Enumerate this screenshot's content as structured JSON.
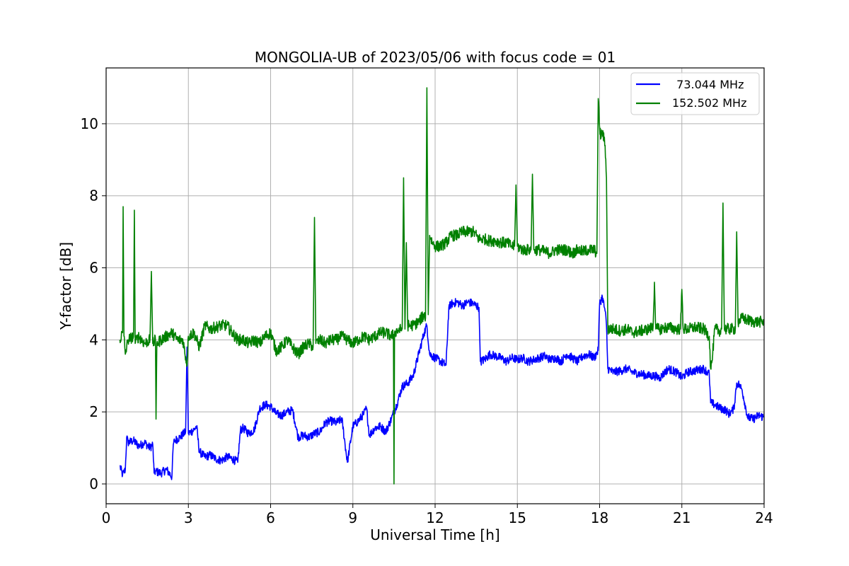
{
  "chart_data": {
    "type": "line",
    "title": "MONGOLIA-UB of 2023/05/06 with focus code = 01",
    "xlabel": "Universal Time [h]",
    "ylabel": "Y-factor [dB]",
    "xlim": [
      0,
      24
    ],
    "ylim": [
      -0.55,
      11.55
    ],
    "xticks": [
      0,
      3,
      6,
      9,
      12,
      15,
      18,
      21,
      24
    ],
    "yticks": [
      0,
      2,
      4,
      6,
      8,
      10
    ],
    "grid": true,
    "legend_position": "top-right",
    "series": [
      {
        "name": "73.044 MHz",
        "legend_label": "  73.044 MHz",
        "color": "#0000ff",
        "x": [
          0.5,
          0.6,
          0.7,
          0.75,
          0.8,
          1.0,
          1.2,
          1.4,
          1.6,
          1.7,
          1.75,
          1.8,
          2.0,
          2.2,
          2.4,
          2.45,
          2.5,
          2.7,
          2.9,
          2.95,
          3.0,
          3.2,
          3.3,
          3.4,
          3.6,
          3.8,
          4.0,
          4.2,
          4.4,
          4.6,
          4.8,
          4.9,
          5.0,
          5.2,
          5.4,
          5.6,
          5.8,
          6.0,
          6.2,
          6.4,
          6.6,
          6.8,
          6.95,
          7.0,
          7.2,
          7.4,
          7.6,
          7.8,
          8.0,
          8.2,
          8.4,
          8.6,
          8.8,
          9.0,
          9.2,
          9.4,
          9.5,
          9.6,
          9.8,
          10.0,
          10.2,
          10.4,
          10.6,
          10.8,
          11.0,
          11.2,
          11.4,
          11.6,
          11.7,
          11.8,
          12.0,
          12.2,
          12.4,
          12.5,
          12.6,
          12.8,
          13.0,
          13.2,
          13.4,
          13.6,
          13.65,
          13.8,
          14.0,
          14.2,
          14.4,
          14.6,
          14.8,
          15.0,
          15.2,
          15.4,
          15.6,
          15.8,
          16.0,
          16.2,
          16.4,
          16.6,
          16.8,
          17.0,
          17.2,
          17.4,
          17.6,
          17.8,
          17.95,
          18.0,
          18.1,
          18.2,
          18.25,
          18.3,
          18.5,
          18.8,
          19.0,
          19.2,
          19.5,
          19.8,
          20.0,
          20.2,
          20.5,
          20.8,
          21.0,
          21.2,
          21.5,
          21.8,
          22.0,
          22.05,
          22.2,
          22.4,
          22.6,
          22.7,
          22.8,
          22.9,
          23.0,
          23.1,
          23.2,
          23.4,
          23.6,
          23.8,
          24.0
        ],
        "y": [
          0.5,
          0.25,
          0.4,
          1.3,
          1.15,
          1.2,
          1.05,
          1.15,
          1.0,
          1.1,
          0.3,
          0.35,
          0.3,
          0.4,
          0.2,
          1.1,
          1.2,
          1.3,
          1.45,
          3.8,
          1.4,
          1.5,
          1.6,
          0.9,
          0.75,
          0.8,
          0.7,
          0.65,
          0.75,
          0.7,
          0.6,
          1.5,
          1.55,
          1.4,
          1.5,
          2.1,
          2.2,
          2.15,
          1.95,
          1.9,
          2.0,
          2.05,
          1.5,
          1.3,
          1.35,
          1.3,
          1.4,
          1.45,
          1.7,
          1.75,
          1.7,
          1.8,
          0.6,
          1.6,
          1.75,
          1.95,
          2.1,
          1.35,
          1.55,
          1.6,
          1.45,
          1.8,
          2.2,
          2.7,
          2.8,
          3.0,
          3.6,
          4.2,
          4.4,
          3.6,
          3.5,
          3.4,
          3.3,
          4.9,
          5.0,
          5.05,
          4.95,
          5.05,
          5.0,
          4.9,
          3.4,
          3.45,
          3.6,
          3.55,
          3.5,
          3.4,
          3.5,
          3.45,
          3.5,
          3.4,
          3.45,
          3.5,
          3.55,
          3.45,
          3.5,
          3.4,
          3.6,
          3.5,
          3.4,
          3.55,
          3.6,
          3.5,
          3.7,
          5.0,
          5.2,
          4.8,
          4.4,
          3.2,
          3.1,
          3.15,
          3.2,
          3.1,
          3.05,
          3.0,
          3.0,
          2.95,
          3.2,
          3.1,
          2.95,
          3.1,
          3.15,
          3.2,
          3.05,
          2.25,
          2.2,
          2.1,
          2.05,
          1.95,
          2.0,
          2.1,
          2.8,
          2.75,
          2.6,
          1.85,
          1.8,
          1.9,
          1.85
        ]
      },
      {
        "name": "152.502 MHz",
        "legend_label": "152.502 MHz",
        "color": "#008000",
        "x": [
          0.5,
          0.6,
          0.62,
          0.65,
          0.68,
          0.7,
          0.8,
          1.0,
          1.03,
          1.06,
          1.1,
          1.2,
          1.4,
          1.6,
          1.65,
          1.7,
          1.8,
          1.82,
          1.85,
          2.0,
          2.2,
          2.4,
          2.6,
          2.8,
          2.95,
          3.0,
          3.2,
          3.4,
          3.6,
          3.8,
          4.0,
          4.2,
          4.4,
          4.6,
          4.8,
          5.0,
          5.2,
          5.4,
          5.6,
          5.8,
          6.0,
          6.2,
          6.4,
          6.6,
          6.8,
          7.0,
          7.2,
          7.4,
          7.55,
          7.6,
          7.65,
          7.8,
          8.0,
          8.2,
          8.4,
          8.6,
          8.8,
          9.0,
          9.2,
          9.4,
          9.6,
          9.8,
          10.0,
          10.2,
          10.4,
          10.48,
          10.5,
          10.52,
          10.6,
          10.8,
          10.85,
          10.9,
          10.95,
          11.0,
          11.2,
          11.4,
          11.6,
          11.65,
          11.7,
          11.75,
          11.8,
          11.9,
          12.0,
          12.2,
          12.4,
          12.6,
          12.8,
          13.0,
          13.2,
          13.4,
          13.6,
          13.8,
          14.0,
          14.2,
          14.4,
          14.6,
          14.8,
          14.9,
          14.95,
          15.0,
          15.2,
          15.4,
          15.5,
          15.55,
          15.6,
          15.8,
          16.0,
          16.2,
          16.4,
          16.6,
          16.8,
          17.0,
          17.2,
          17.4,
          17.6,
          17.8,
          17.9,
          17.95,
          18.0,
          18.05,
          18.1,
          18.2,
          18.25,
          18.3,
          18.5,
          18.8,
          19.0,
          19.2,
          19.5,
          19.8,
          19.95,
          20.0,
          20.05,
          20.2,
          20.5,
          20.8,
          20.95,
          21.0,
          21.05,
          21.2,
          21.5,
          21.8,
          22.0,
          22.05,
          22.1,
          22.2,
          22.4,
          22.45,
          22.5,
          22.55,
          22.8,
          22.95,
          23.0,
          23.05,
          23.2,
          23.4,
          23.6,
          23.8,
          24.0
        ],
        "y": [
          4.0,
          4.2,
          7.7,
          4.1,
          3.8,
          3.6,
          4.0,
          4.1,
          7.6,
          3.9,
          4.0,
          4.1,
          3.9,
          4.0,
          5.9,
          3.9,
          4.0,
          1.8,
          3.9,
          4.0,
          4.1,
          4.2,
          4.0,
          4.0,
          3.3,
          4.1,
          4.2,
          3.8,
          4.4,
          4.3,
          4.35,
          4.4,
          4.4,
          4.2,
          4.0,
          4.0,
          3.9,
          4.0,
          3.9,
          4.1,
          4.2,
          3.7,
          3.8,
          4.0,
          3.8,
          3.6,
          3.8,
          3.9,
          3.8,
          7.4,
          3.9,
          4.0,
          3.9,
          4.0,
          4.0,
          4.1,
          4.0,
          3.9,
          4.0,
          4.1,
          4.0,
          4.1,
          4.2,
          4.2,
          4.1,
          4.15,
          0.0,
          4.2,
          4.25,
          4.3,
          8.5,
          4.3,
          6.7,
          4.4,
          4.4,
          4.5,
          4.7,
          4.6,
          11.0,
          4.7,
          6.9,
          6.7,
          6.6,
          6.6,
          6.7,
          6.9,
          6.9,
          7.0,
          7.0,
          7.0,
          6.8,
          6.8,
          6.75,
          6.75,
          6.7,
          6.7,
          6.6,
          6.6,
          8.3,
          6.6,
          6.5,
          6.5,
          6.5,
          8.6,
          6.5,
          6.5,
          6.45,
          6.4,
          6.5,
          6.5,
          6.5,
          6.4,
          6.5,
          6.45,
          6.5,
          6.5,
          6.4,
          10.7,
          9.9,
          9.6,
          9.8,
          9.4,
          8.5,
          4.3,
          4.3,
          4.25,
          4.3,
          4.2,
          4.25,
          4.3,
          4.35,
          5.6,
          4.3,
          4.3,
          4.35,
          4.3,
          4.3,
          5.4,
          4.3,
          4.3,
          4.35,
          4.3,
          4.1,
          3.2,
          3.4,
          4.3,
          4.25,
          4.3,
          7.8,
          4.3,
          4.3,
          4.3,
          7.0,
          4.5,
          4.6,
          4.55,
          4.5,
          4.5,
          4.5
        ]
      }
    ]
  }
}
